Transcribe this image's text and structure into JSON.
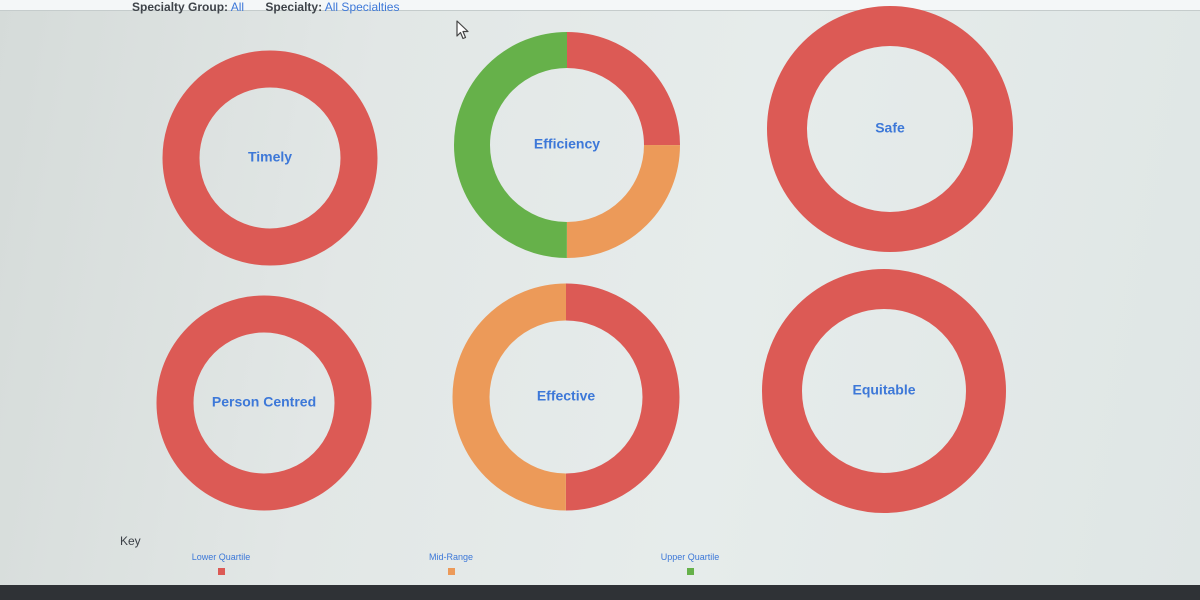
{
  "filters": {
    "specialty_group_label": "Specialty Group:",
    "specialty_group_value": "All",
    "specialty_label": "Specialty:",
    "specialty_value": "All Specialties"
  },
  "chart_data": [
    {
      "type": "pie",
      "title": "Timely",
      "slices": [
        {
          "category": "Lower Quartile",
          "value": 100
        }
      ]
    },
    {
      "type": "pie",
      "title": "Efficiency",
      "slices": [
        {
          "category": "Lower Quartile",
          "value": 25
        },
        {
          "category": "Mid-Range",
          "value": 25
        },
        {
          "category": "Upper Quartile",
          "value": 50
        }
      ]
    },
    {
      "type": "pie",
      "title": "Safe",
      "slices": [
        {
          "category": "Lower Quartile",
          "value": 100
        }
      ]
    },
    {
      "type": "pie",
      "title": "Person Centred",
      "slices": [
        {
          "category": "Lower Quartile",
          "value": 100
        }
      ]
    },
    {
      "type": "pie",
      "title": "Effective",
      "slices": [
        {
          "category": "Lower Quartile",
          "value": 50
        },
        {
          "category": "Mid-Range",
          "value": 50
        }
      ]
    },
    {
      "type": "pie",
      "title": "Equitable",
      "slices": [
        {
          "category": "Lower Quartile",
          "value": 100
        }
      ]
    }
  ],
  "key": {
    "title": "Key",
    "items": [
      {
        "label": "Lower Quartile",
        "color": "#dc5a55"
      },
      {
        "label": "Mid-Range",
        "color": "#ec9a59"
      },
      {
        "label": "Upper Quartile",
        "color": "#66b14a"
      }
    ]
  }
}
